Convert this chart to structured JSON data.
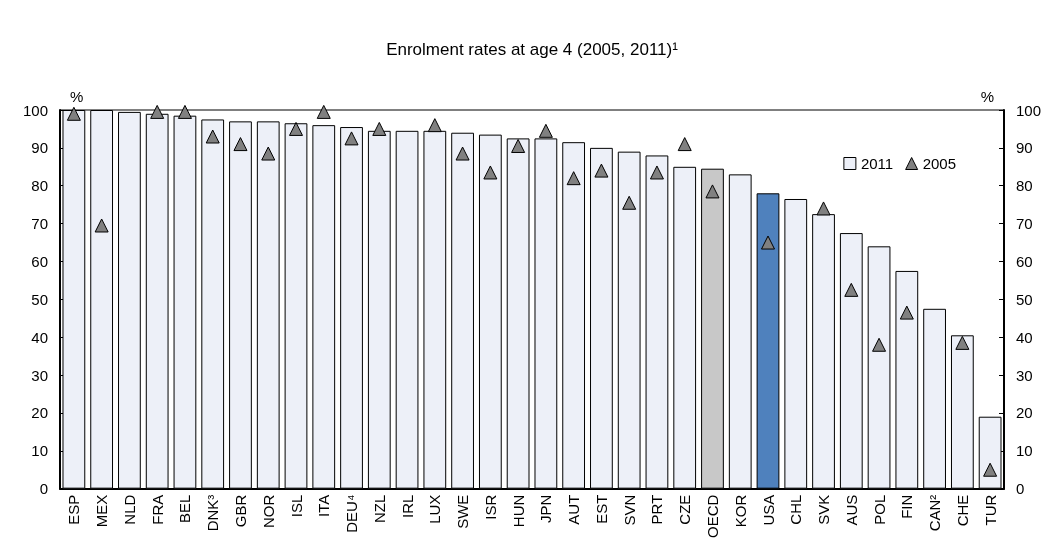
{
  "chart_data": {
    "type": "bar",
    "title": "Enrolment rates at age 4 (2005, 2011)¹",
    "ylabel": "%",
    "y2label": "%",
    "categories": [
      "ESP",
      "MEX",
      "NLD",
      "FRA",
      "BEL",
      "DNK³",
      "GBR",
      "NOR",
      "ISL",
      "ITA",
      "DEU⁴",
      "NZL",
      "IRL",
      "LUX",
      "SWE",
      "ISR",
      "HUN",
      "JPN",
      "AUT",
      "EST",
      "SVN",
      "PRT",
      "CZE",
      "OECD",
      "KOR",
      "USA",
      "CHL",
      "SVK",
      "AUS",
      "POL",
      "FIN",
      "CAN²",
      "CHE",
      "TUR"
    ],
    "series": [
      {
        "name": "2011",
        "color": "#edf0f8",
        "colors": [
          "#edf0f8",
          "#edf0f8",
          "#edf0f8",
          "#edf0f8",
          "#edf0f8",
          "#edf0f8",
          "#edf0f8",
          "#edf0f8",
          "#edf0f8",
          "#edf0f8",
          "#edf0f8",
          "#edf0f8",
          "#edf0f8",
          "#edf0f8",
          "#edf0f8",
          "#edf0f8",
          "#edf0f8",
          "#edf0f8",
          "#edf0f8",
          "#edf0f8",
          "#edf0f8",
          "#edf0f8",
          "#edf0f8",
          "#c8c8c8",
          "#edf0f8",
          "#4f81bd",
          "#edf0f8",
          "#edf0f8",
          "#edf0f8",
          "#edf0f8",
          "#edf0f8",
          "#edf0f8",
          "#edf0f8",
          "#edf0f8"
        ],
        "values": [
          100,
          100,
          99.5,
          99,
          98.5,
          97.5,
          97,
          97,
          96.5,
          96,
          95.5,
          94.5,
          94.5,
          94.5,
          94,
          93.5,
          92.5,
          92.5,
          91.5,
          90,
          89,
          88,
          85,
          84.5,
          83,
          78,
          76.5,
          72.5,
          67.5,
          64,
          57.5,
          47.5,
          40.5,
          19
        ]
      },
      {
        "name": "2005",
        "type": "scatter",
        "marker": "triangle",
        "color": "#808080",
        "values": [
          99,
          69.5,
          null,
          99.5,
          99.5,
          93,
          91,
          88.5,
          95,
          99.5,
          92.5,
          95,
          null,
          96,
          88.5,
          83.5,
          90.5,
          94.5,
          82,
          84,
          75.5,
          83.5,
          91,
          78.5,
          null,
          65,
          null,
          74,
          52.5,
          38,
          46.5,
          null,
          38.5,
          5
        ]
      }
    ],
    "ylim": [
      0,
      100
    ],
    "yticks": [
      0,
      10,
      20,
      30,
      40,
      50,
      60,
      70,
      80,
      90,
      100
    ],
    "y2lim": [
      0,
      100
    ],
    "y2ticks": [
      0,
      10,
      20,
      30,
      40,
      50,
      60,
      70,
      80,
      90,
      100
    ],
    "grid": false,
    "legend": "top right"
  }
}
